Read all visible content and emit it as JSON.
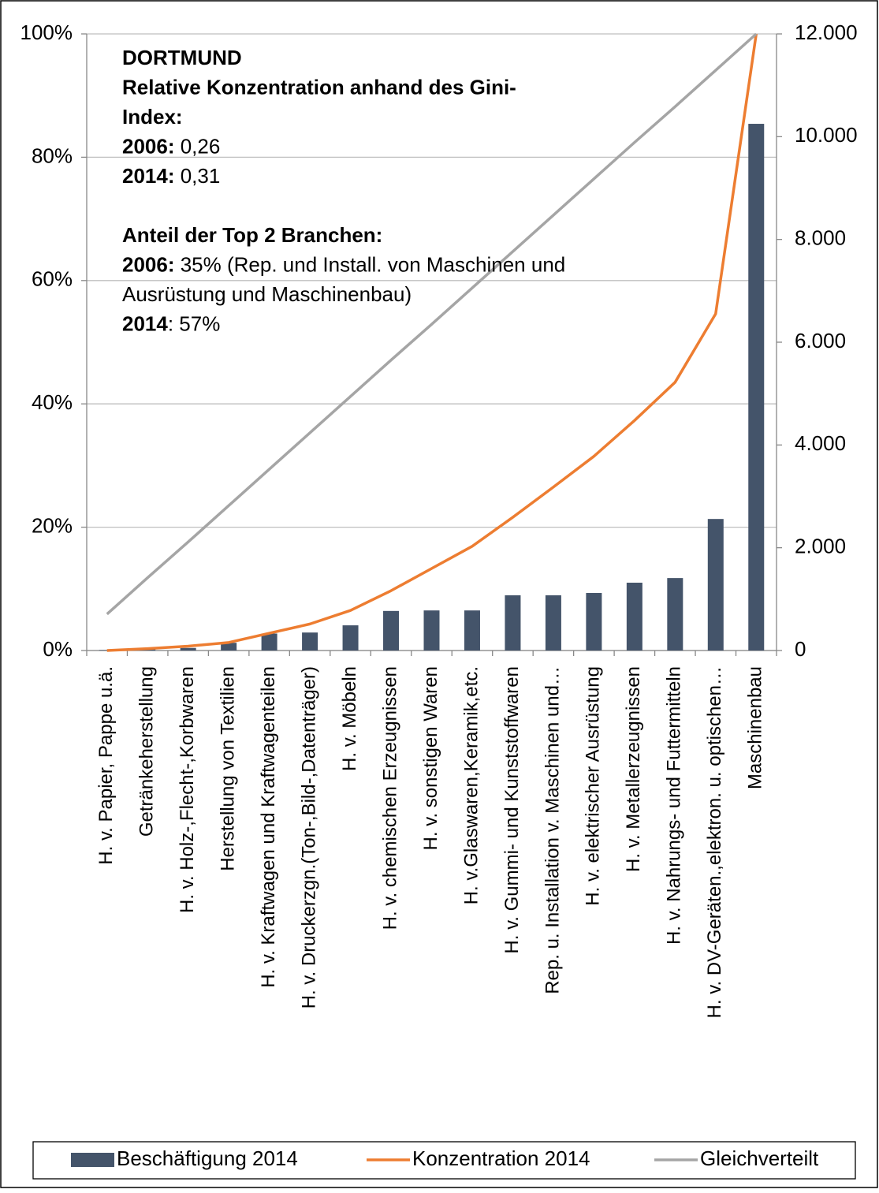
{
  "chart_data": {
    "type": "bar-line",
    "annotations": [
      [
        [
          {
            "bold": "DORTMUND"
          }
        ],
        [
          {
            "bold": "Relative Konzentration anhand des Gini-"
          }
        ],
        [
          {
            "bold": "Index:"
          }
        ],
        [
          {
            "bold": "2006:",
            "text": " 0,26"
          }
        ],
        [
          {
            "bold": "2014:",
            "text": " 0,31"
          }
        ]
      ],
      [
        [
          {
            "bold": "Anteil der Top 2 Branchen:"
          }
        ],
        [
          {
            "bold": "2006:",
            "text": " 35% (Rep. und Install. von Maschinen und"
          }
        ],
        [
          {
            "text": "Ausrüstung und Maschinenbau)"
          }
        ],
        [
          {
            "bold": "2014",
            "text": ": 57%"
          }
        ]
      ]
    ],
    "categories": [
      "H. v. Papier, Pappe u.ä.",
      "Getränkeherstellung",
      "H. v. Holz-,Flecht-,Korbwaren",
      "Herstellung von Textilien",
      "H. v.  Kraftwagen und Kraftwagenteilen",
      "H. v. Druckerzgn.(Ton-,Bild-,Datenträger)",
      "H. v.  Möbeln",
      "H. v. chemischen Erzeugnissen",
      "H. v.  sonstigen Waren",
      "H. v.Glaswaren,Keramik,etc.",
      "H. v. Gummi- und Kunststoffwaren",
      "Rep. u. Installation v. Maschinen und…",
      "H. v.  elektrischer Ausrüstung",
      "H. v.  Metallerzeugnissen",
      "H. v. Nahrungs- und Futtermitteln",
      "H. v. DV-Geräten.,elektron. u. optischen…",
      "Maschinenbau"
    ],
    "series": [
      {
        "name": "Beschäftigung 2014",
        "type": "bar",
        "axis": "y2",
        "color": "#44546a",
        "values": [
          10,
          30,
          50,
          150,
          330,
          350,
          490,
          770,
          780,
          780,
          1075,
          1075,
          1120,
          1320,
          1410,
          2560,
          10250
        ]
      },
      {
        "name": "Konzentration 2014",
        "type": "line",
        "color": "#ed7d31",
        "values": [
          0,
          0.3,
          0.7,
          1.3,
          2.8,
          4.3,
          6.5,
          9.7,
          13.3,
          16.9,
          21.6,
          26.5,
          31.5,
          37.3,
          43.5,
          54.6,
          100
        ]
      },
      {
        "name": "Gleichverteilt",
        "type": "line",
        "color": "#a5a5a5",
        "values": [
          5.9,
          11.8,
          17.6,
          23.5,
          29.4,
          35.3,
          41.2,
          47.1,
          52.9,
          58.8,
          64.7,
          70.6,
          76.5,
          82.4,
          88.2,
          94.1,
          100
        ]
      }
    ],
    "ylim": [
      0,
      100
    ],
    "yticks": [
      {
        "value": 0,
        "label": "0%"
      },
      {
        "value": 20,
        "label": "20%"
      },
      {
        "value": 40,
        "label": "40%"
      },
      {
        "value": 60,
        "label": "60%"
      },
      {
        "value": 80,
        "label": "80%"
      },
      {
        "value": 100,
        "label": "100%"
      }
    ],
    "y2lim": [
      0,
      12000
    ],
    "y2ticks": [
      0,
      {
        "value": 2000,
        "label": "2.000"
      },
      {
        "value": 4000,
        "label": "4.000"
      },
      {
        "value": 6000,
        "label": "6.000"
      },
      {
        "value": 8000,
        "label": "8.000"
      },
      {
        "value": 10000,
        "label": "10.000"
      },
      {
        "value": 12000,
        "label": "12.000"
      }
    ],
    "grid": true,
    "legend": "bottom"
  }
}
